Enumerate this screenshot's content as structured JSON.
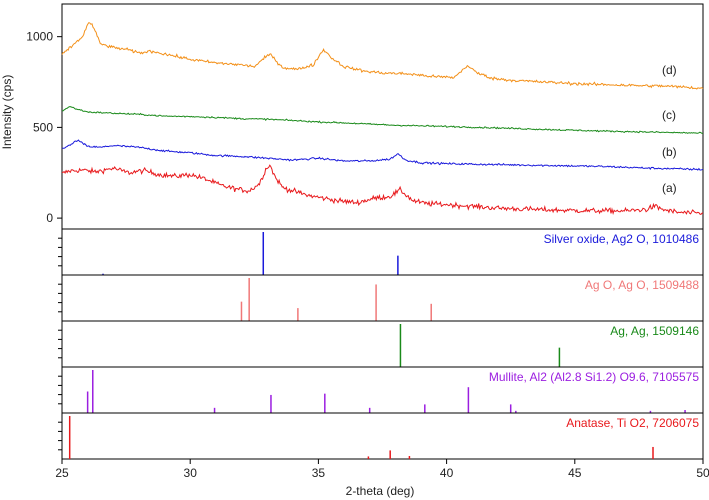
{
  "chart_data": {
    "type": "line",
    "xlabel": "2-theta (deg)",
    "ylabel": "Intensity (cps)",
    "xlim": [
      25,
      50
    ],
    "ylim": [
      -60,
      1180
    ],
    "x_ticks": [
      25,
      30,
      35,
      40,
      45,
      50
    ],
    "y_ticks": [
      0,
      500,
      1000
    ],
    "grid": false,
    "series": [
      {
        "name": "(a)",
        "color": "#e8191c",
        "x": [
          25.0,
          25.3,
          25.8,
          26.3,
          27.0,
          27.6,
          28.2,
          28.8,
          29.4,
          30.0,
          30.6,
          31.2,
          31.8,
          32.3,
          32.7,
          32.95,
          33.1,
          33.3,
          33.6,
          34.0,
          34.6,
          35.2,
          35.8,
          36.5,
          37.2,
          37.8,
          38.2,
          38.4,
          38.7,
          39.2,
          40.0,
          41.0,
          42.0,
          43.0,
          44.0,
          45.0,
          46.0,
          47.0,
          47.8,
          48.1,
          48.5,
          49.0,
          50.0
        ],
        "values": [
          245,
          260,
          265,
          255,
          275,
          250,
          262,
          240,
          230,
          240,
          215,
          180,
          160,
          150,
          190,
          270,
          295,
          230,
          170,
          150,
          125,
          110,
          95,
          85,
          110,
          120,
          155,
          130,
          95,
          80,
          75,
          65,
          55,
          50,
          45,
          42,
          40,
          40,
          48,
          65,
          45,
          32,
          25
        ]
      },
      {
        "name": "(b)",
        "color": "#1a1adb",
        "x": [
          25.0,
          25.3,
          25.6,
          26.0,
          26.5,
          27.0,
          28.0,
          29.0,
          30.0,
          31.0,
          32.0,
          33.0,
          34.0,
          35.0,
          36.0,
          37.0,
          37.8,
          38.1,
          38.4,
          39.0,
          40.0,
          42.0,
          44.0,
          46.0,
          48.0,
          50.0
        ],
        "values": [
          385,
          400,
          430,
          395,
          390,
          400,
          390,
          370,
          360,
          345,
          340,
          330,
          320,
          330,
          315,
          315,
          325,
          355,
          320,
          305,
          300,
          295,
          290,
          285,
          275,
          268
        ]
      },
      {
        "name": "(c)",
        "color": "#1a8a1a",
        "x": [
          25.0,
          25.3,
          25.6,
          26.0,
          27.0,
          28.0,
          29.0,
          30.0,
          31.0,
          32.0,
          33.0,
          34.0,
          35.0,
          36.0,
          37.0,
          38.0,
          40.0,
          42.0,
          44.0,
          46.0,
          48.0,
          50.0
        ],
        "values": [
          590,
          615,
          600,
          585,
          578,
          572,
          562,
          560,
          555,
          548,
          545,
          538,
          530,
          525,
          518,
          512,
          505,
          497,
          488,
          480,
          474,
          468
        ]
      },
      {
        "name": "(d)",
        "color": "#f39019",
        "x": [
          25.0,
          25.4,
          25.8,
          26.05,
          26.2,
          26.5,
          27.0,
          27.5,
          28.0,
          28.5,
          29.0,
          30.0,
          31.0,
          31.5,
          32.0,
          32.5,
          33.1,
          33.6,
          34.2,
          34.8,
          35.2,
          35.5,
          36.0,
          36.8,
          37.5,
          38.5,
          39.5,
          40.3,
          40.8,
          41.2,
          41.8,
          42.5,
          43.5,
          44.5,
          45.5,
          46.5,
          47.5,
          48.5,
          49.5,
          50.0
        ],
        "values": [
          900,
          950,
          1000,
          1080,
          1060,
          960,
          940,
          930,
          910,
          920,
          905,
          875,
          855,
          850,
          845,
          835,
          905,
          830,
          820,
          845,
          930,
          885,
          835,
          810,
          800,
          795,
          780,
          775,
          840,
          800,
          770,
          760,
          752,
          745,
          738,
          735,
          730,
          728,
          720,
          715
        ]
      }
    ],
    "curve_labels": [
      "(a)",
      "(b)",
      "(c)",
      "(d)"
    ],
    "reference_panels": [
      {
        "label": "Silver oxide, Ag2 O, 1010486",
        "color": "#1a1adb",
        "peaks": [
          {
            "x": 32.85,
            "h": 1.0
          },
          {
            "x": 38.1,
            "h": 0.45
          },
          {
            "x": 26.6,
            "h": 0.03
          }
        ]
      },
      {
        "label": "Ag O, Ag O, 1509488",
        "color": "#f07878",
        "peaks": [
          {
            "x": 32.0,
            "h": 0.45
          },
          {
            "x": 32.3,
            "h": 1.0
          },
          {
            "x": 34.2,
            "h": 0.3
          },
          {
            "x": 37.25,
            "h": 0.85
          },
          {
            "x": 39.4,
            "h": 0.4
          }
        ]
      },
      {
        "label": "Ag, Ag, 1509146",
        "color": "#1a8a1a",
        "peaks": [
          {
            "x": 38.2,
            "h": 1.0
          },
          {
            "x": 44.4,
            "h": 0.45
          }
        ]
      },
      {
        "label": "Mullite, Al2 (Al2.8 Si1.2) O9.6, 7105575",
        "color": "#9b1ee0",
        "peaks": [
          {
            "x": 26.0,
            "h": 0.5
          },
          {
            "x": 26.2,
            "h": 1.0
          },
          {
            "x": 30.95,
            "h": 0.12
          },
          {
            "x": 33.15,
            "h": 0.42
          },
          {
            "x": 35.25,
            "h": 0.45
          },
          {
            "x": 37.0,
            "h": 0.12
          },
          {
            "x": 39.15,
            "h": 0.2
          },
          {
            "x": 40.85,
            "h": 0.6
          },
          {
            "x": 42.5,
            "h": 0.2
          },
          {
            "x": 42.7,
            "h": 0.05
          },
          {
            "x": 47.95,
            "h": 0.05
          },
          {
            "x": 49.3,
            "h": 0.07
          }
        ]
      },
      {
        "label": "Anatase, Ti O2, 7206075",
        "color": "#e8191c",
        "peaks": [
          {
            "x": 25.3,
            "h": 1.0
          },
          {
            "x": 36.95,
            "h": 0.06
          },
          {
            "x": 37.8,
            "h": 0.2
          },
          {
            "x": 38.55,
            "h": 0.07
          },
          {
            "x": 48.05,
            "h": 0.28
          }
        ]
      }
    ]
  }
}
